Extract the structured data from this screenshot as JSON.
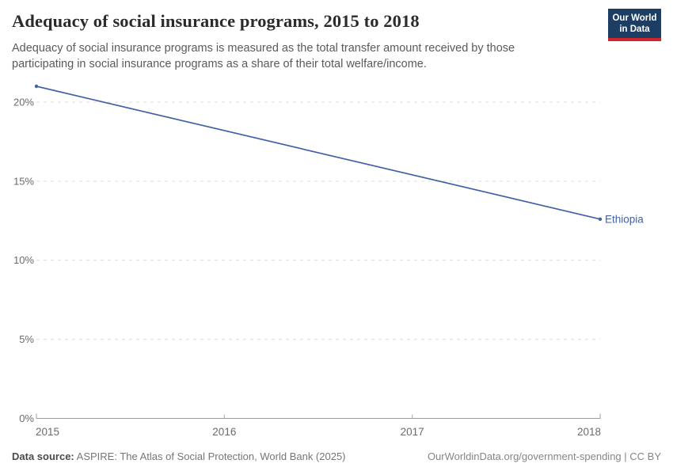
{
  "header": {
    "title": "Adequacy of social insurance programs, 2015 to 2018",
    "subtitle_line1": "Adequacy of social insurance programs is measured as the total transfer amount received by those",
    "subtitle_line2": "participating in social insurance programs as a share of their total welfare/income.",
    "logo": {
      "line1": "Our World",
      "line2": "in Data",
      "bg_color": "#1d3d63",
      "accent_color": "#d0252c"
    }
  },
  "footer": {
    "datasource_label": "Data source:",
    "datasource_value": "ASPIRE: The Atlas of Social Protection, World Bank (2025)",
    "link": "OurWorldinData.org/government-spending | CC BY"
  },
  "chart_data": {
    "type": "line",
    "title": "Adequacy of social insurance programs, 2015 to 2018",
    "x": [
      2015,
      2018
    ],
    "series": [
      {
        "name": "Ethiopia",
        "color": "#4262a5",
        "values": [
          21.0,
          12.6
        ]
      }
    ],
    "xlabel": "",
    "ylabel": "",
    "xlim": [
      2015,
      2018
    ],
    "ylim": [
      0,
      21.2
    ],
    "yticks": [
      0,
      5,
      10,
      15,
      20
    ],
    "ytick_suffix": "%",
    "xticks": [
      2015,
      2016,
      2017,
      2018
    ],
    "grid": "horizontal-dashed",
    "legend": "line-end-label",
    "colors": {
      "gridline": "#dcdcdc",
      "axis": "#9e9e9e",
      "tick_label": "#6b6b6b"
    }
  }
}
